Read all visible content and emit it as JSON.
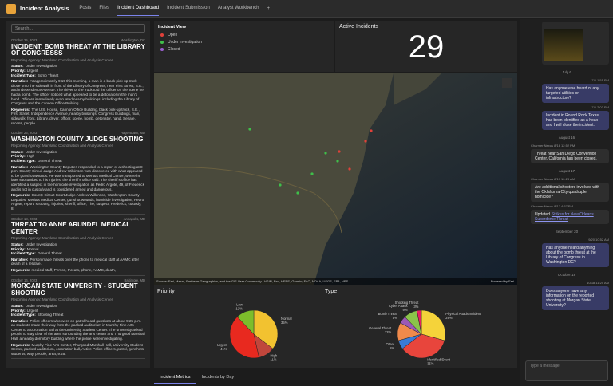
{
  "app": {
    "title": "Incident Analysis",
    "tabs": [
      "Posts",
      "Files",
      "Incident Dashboard",
      "Incident Submission",
      "Analyst Workbench"
    ],
    "active_tab": 2
  },
  "search_placeholder": "Search...",
  "field_labels": {
    "status": "Status:",
    "priority": "Priority:",
    "type": "Incident Type:",
    "narrative": "Narrative:",
    "keywords": "Keywords:"
  },
  "incidents": [
    {
      "date": "October 25, 2023",
      "location": "Washington, DC",
      "title": "INCIDENT: BOMB THREAT AT THE LIBRARY OF CONGRESSS",
      "agency": "Reporting Agency: Maryland Coordination and Analysis Center",
      "status": "Under Investigation",
      "priority": "Urgent",
      "type": "Bomb Threat",
      "narrative": "At approximately 9:15 this morning, a man in a black pick-up truck drove onto the sidewalk in front of the Library of Congress, near First Street, S.E., and Independence Avenue. The driver of the truck told the officer on the scene he had a bomb. The officer noticed what appeared to be a detonator in the man's hand. Officers immediately evacuated nearby buildings, including the Library of Congress and the Cannon Office Building.",
      "keywords": "The U.S. House, Cannon Office Building, black pick-up truck, S.E., First Street, Independence Avenue, nearby buildings, Congress Buildings, man, sidewalk, front, Library, driver, officer, scene, bomb, detonator, hand, Senate, recess, people."
    },
    {
      "date": "October 23, 2023",
      "location": "Hagerstown, MD",
      "title": "WASHINGTON COUNTY JUDGE SHOOTING",
      "agency": "Reporting Agency: Maryland Coordination and Analysis Center",
      "status": "Under Investigation",
      "priority": "High",
      "type": "General Threat",
      "narrative": "Washington County Deputies responded to a report of a shooting at 8 p.m. County Circuit Judge Andrew Wilkinson was discovered with what appeared to be gunshot wounds. He was transported to Meritus Medical Center, where he later succumbed to his injuries, the sheriff's office said. The sheriff's office has identified a suspect in the homicide investigation as Pedro Argote, 49, of Frederick and is not in custody and is considered armed and dangerous.",
      "keywords": "County Circuit Court Judge Andrew Wilkinson, Washington County Deputies, Meritus Medical Center, gunshot wounds, homicide investigation, Pedro Argote, report, shooting, injuries, sheriff, office, The, suspect, Frederick, custody, 8."
    },
    {
      "date": "October 18, 2023",
      "location": "Annapolis, MD",
      "title": "THREAT TO ANNE ARUNDEL MEDICAL CENTER",
      "agency": "Reporting Agency: Maryland Coordination and Analysis Center",
      "status": "Under Investigation",
      "priority": "Normal",
      "type": "General Threat",
      "narrative": "Person made threats over the phone to medical staff at AAMC after death of a relative.",
      "keywords": "medical staff, Person, threats, phone, AAMC, death,"
    },
    {
      "date": "October 16, 2023",
      "location": "Baltimore, MD",
      "title": "MORGAN STATE UNIVERSITY - STUDENT SHOOTING",
      "agency": "Reporting Agency: Maryland Coordination and Analysis Center",
      "status": "Under Investigation",
      "priority": "Urgent",
      "type": "Shooting Threat",
      "narrative": "Police officers who were on patrol heard gunshots at about 9:25 p.m. as students made their way from the packed auditorium in Murphy Fine Arts Center to a coronation ball at the University Student Center. The university asked people to stay clear of the area surrounding the arts center and Thurgood Marshall Hall, a nearby dormitory building where the police were investigating.",
      "keywords": "Murphy Fine Arts Center, Thurgood Marshall Hall, University Student Center, packed auditorium, coronation ball, Active Police officers, patrol, gunshots, students, way, people, area, 9:25."
    }
  ],
  "legend": {
    "title": "Incident View",
    "items": [
      {
        "label": "Open",
        "color": "#e0413a"
      },
      {
        "label": "Under Investigation",
        "color": "#3fbf4a"
      },
      {
        "label": "Closed",
        "color": "#9a5fd0"
      }
    ]
  },
  "active_incidents": {
    "title": "Active Incidents",
    "value": 29
  },
  "map": {
    "attribution": "Source: Esri, Maxar, Earthstar Geographics, and the GIS User Community | VGIN, Esri, HERE, Garmin, FAO, NOAA, USGS, EPA, NPS",
    "powered_by": "Powered by Esri"
  },
  "chart_data": [
    {
      "type": "pie",
      "title": "Priority",
      "categories": [
        "Normal",
        "High",
        "Urgent",
        "Low"
      ],
      "values": [
        35,
        11,
        41,
        12
      ],
      "value_labels": [
        "35%",
        "11%",
        "41%",
        "12%"
      ],
      "colors": [
        "#f2c230",
        "#c0463c",
        "#e8291f",
        "#7cbd2b"
      ]
    },
    {
      "type": "pie",
      "title": "Type",
      "categories": [
        "Physical Attack/Incident",
        "Identified Event",
        "Other",
        "General Threat",
        "Bomb Threat",
        "Cyber Attack",
        "Shooting Threat"
      ],
      "values": [
        29,
        35,
        6,
        12,
        5,
        9,
        3
      ],
      "value_labels": [
        "29%",
        "35%",
        "6%",
        "12%",
        "5%",
        "9%",
        "3%"
      ],
      "colors": [
        "#f5d33a",
        "#e8453c",
        "#3a7bd5",
        "#f08a4b",
        "#9b59b6",
        "#8bc34a",
        "#e91e63"
      ]
    }
  ],
  "bottom_tabs": [
    "Incident Metrics",
    "Incidents by Day"
  ],
  "chat": {
    "messages": [
      {
        "date": "July 6"
      },
      {
        "time": "7/6 1:51 PM",
        "text": "Has anyone else heard of any targeted utilities or infrastructure?",
        "side": "right"
      },
      {
        "time": "7/6 2:03 PM",
        "text": "Incident in Round Rock Texas has been identified as a hoax and I will close the incident.",
        "side": "right"
      },
      {
        "date": "August 16"
      },
      {
        "author": "Charmer Nexus",
        "time": "8/16 12:52 PM",
        "text": "Threat near San Diego Convention Center, California has been closed.",
        "side": "left"
      },
      {
        "date": "August 17"
      },
      {
        "author": "Charmer Nexus",
        "time": "8/17 10:28 AM",
        "text": "Are additional shooters involved with the Oklahoma City quadruple homicide?",
        "side": "left"
      },
      {
        "author": "Charmer Nexus",
        "time": "8/17 4:57 PM",
        "text": "Updated",
        "link": "Strikes for New Orleans Superdome Threat",
        "side": "left"
      },
      {
        "date": "September 20"
      },
      {
        "time": "9/20 10:52 AM",
        "text": "Has anyone heard anything about the bomb threat at the Library of Congress in Washington DC?",
        "side": "right"
      },
      {
        "date": "October 18"
      },
      {
        "time": "10/18 11:20 AM",
        "text": "Does anyone have any information on the reported shooting at Morgan State University?",
        "side": "right"
      }
    ],
    "input_placeholder": "Type a message"
  }
}
